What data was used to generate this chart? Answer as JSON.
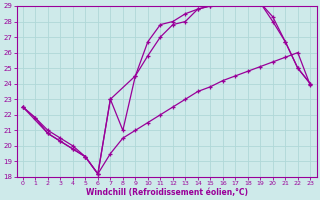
{
  "xlabel": "Windchill (Refroidissement éolien,°C)",
  "xlim": [
    -0.5,
    23.5
  ],
  "ylim": [
    18,
    29
  ],
  "xticks": [
    0,
    1,
    2,
    3,
    4,
    5,
    6,
    7,
    8,
    9,
    10,
    11,
    12,
    13,
    14,
    15,
    16,
    17,
    18,
    19,
    20,
    21,
    22,
    23
  ],
  "yticks": [
    18,
    19,
    20,
    21,
    22,
    23,
    24,
    25,
    26,
    27,
    28,
    29
  ],
  "background_color": "#ceeaea",
  "line_color": "#990099",
  "grid_color": "#b0d8d8",
  "lines": [
    {
      "x": [
        0,
        1,
        2,
        3,
        4,
        5,
        6,
        7,
        8,
        9,
        10,
        11,
        12,
        13,
        14,
        15,
        16,
        17,
        18,
        19,
        20,
        21,
        22,
        23
      ],
      "y": [
        22.5,
        21.8,
        21.0,
        20.5,
        20.0,
        19.3,
        18.2,
        19.5,
        20.5,
        21.0,
        21.5,
        22.0,
        22.5,
        23.0,
        23.5,
        23.8,
        24.2,
        24.5,
        24.8,
        25.1,
        25.4,
        25.7,
        26.0,
        23.9
      ]
    },
    {
      "x": [
        0,
        1,
        2,
        3,
        4,
        5,
        6,
        7,
        8,
        9,
        10,
        11,
        12,
        13,
        14,
        15,
        16,
        17,
        18,
        19,
        20,
        21,
        22,
        23
      ],
      "y": [
        22.5,
        21.8,
        20.8,
        20.3,
        19.8,
        19.3,
        18.2,
        23.0,
        21.0,
        24.5,
        26.7,
        27.8,
        28.0,
        28.5,
        28.8,
        29.0,
        29.2,
        29.2,
        29.2,
        29.2,
        28.0,
        26.7,
        25.0,
        24.0
      ]
    },
    {
      "x": [
        0,
        2,
        3,
        4,
        5,
        6,
        7,
        9,
        10,
        11,
        12,
        13,
        14,
        15,
        16,
        17,
        18,
        19,
        20,
        21,
        22,
        23
      ],
      "y": [
        22.5,
        20.8,
        20.3,
        19.8,
        19.3,
        18.2,
        23.0,
        24.5,
        25.8,
        27.0,
        27.8,
        28.0,
        28.8,
        29.0,
        29.2,
        29.2,
        29.2,
        29.2,
        28.3,
        26.7,
        25.0,
        24.0
      ]
    }
  ]
}
